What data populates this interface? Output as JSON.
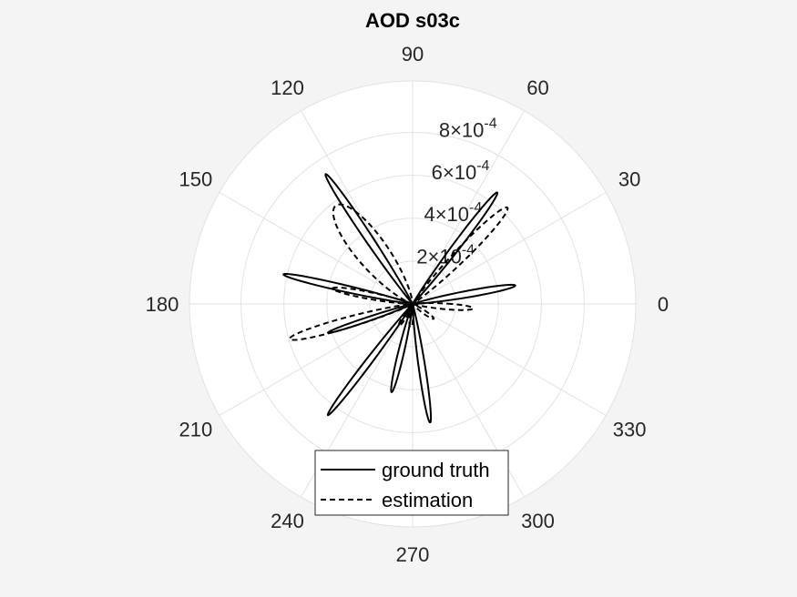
{
  "chart_data": {
    "type": "polar",
    "title": "AOD s03c",
    "theta_unit": "degrees",
    "theta_ticks": [
      "0",
      "30",
      "60",
      "90",
      "120",
      "150",
      "180",
      "210",
      "240",
      "270",
      "300",
      "330"
    ],
    "r_ticks": [
      {
        "mantissa": "2",
        "exp": "-4",
        "value": 0.0002
      },
      {
        "mantissa": "4",
        "exp": "-4",
        "value": 0.0004
      },
      {
        "mantissa": "6",
        "exp": "-4",
        "value": 0.0006
      },
      {
        "mantissa": "8",
        "exp": "-4",
        "value": 0.0008
      }
    ],
    "rlim": [
      0,
      0.00104
    ],
    "grid": true,
    "legend_position": "bottom",
    "series": [
      {
        "name": "ground truth",
        "style": "solid",
        "color": "#000000",
        "lobes": [
          {
            "angle": 123.8,
            "peak": 0.000729,
            "width": 2.4
          },
          {
            "angle": 52.8,
            "peak": 0.000653,
            "width": 2.6
          },
          {
            "angle": 167.1,
            "peak": 0.000618,
            "width": 2.4
          },
          {
            "angle": 10.2,
            "peak": 0.000486,
            "width": 3.0
          },
          {
            "angle": 198.8,
            "peak": 0.000417,
            "width": 2.2
          },
          {
            "angle": 232.7,
            "peak": 0.000652,
            "width": 2.2
          },
          {
            "angle": 256.6,
            "peak": 0.000423,
            "width": 3.0
          },
          {
            "angle": 278.4,
            "peak": 0.000559,
            "width": 2.6
          }
        ]
      },
      {
        "name": "estimation",
        "style": "dashed",
        "color": "#000000",
        "lobes": [
          {
            "angle": 128.0,
            "peak": 0.000582,
            "width": 12.0
          },
          {
            "angle": 45.5,
            "peak": 0.00063,
            "width": 4.5
          },
          {
            "angle": 169.0,
            "peak": 0.00038,
            "width": 4.0
          },
          {
            "angle": 195.9,
            "peak": 0.000596,
            "width": 4.0
          },
          {
            "angle": 355.8,
            "peak": 0.000283,
            "width": 4.5
          },
          {
            "angle": 325.0,
            "peak": 0.00012,
            "width": 6.0
          },
          {
            "angle": 265.0,
            "peak": 0.00011,
            "width": 7.0
          },
          {
            "angle": 238.0,
            "peak": 0.00012,
            "width": 6.0
          }
        ]
      }
    ]
  }
}
